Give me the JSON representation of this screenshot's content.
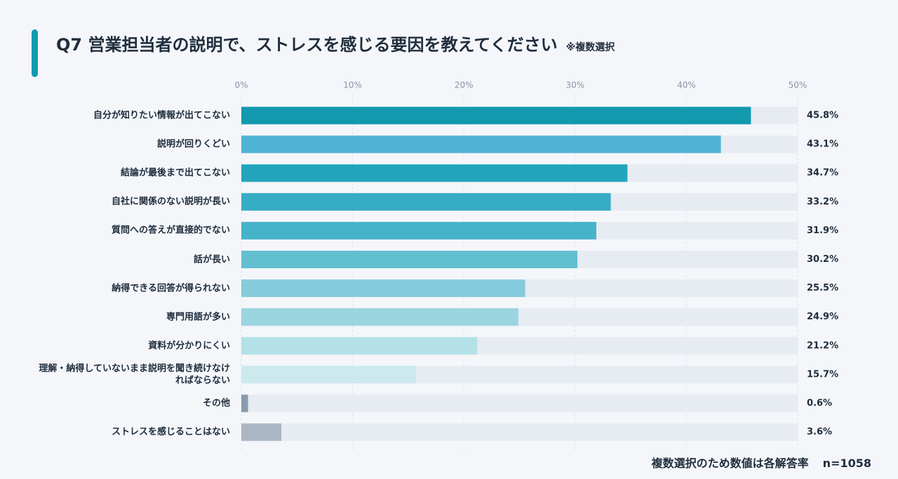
{
  "chart_data": {
    "type": "hbar",
    "title": "Q7 営業担当者の説明で、ストレスを感じる要因を教えてください",
    "subtitle": "※複数選択",
    "categories": [
      "自分が知りたい情報が出てこない",
      "説明が回りくどい",
      "結論が最後まで出てこない",
      "自社に関係のない説明が長い",
      "質問への答えが直接的でない",
      "話が長い",
      "納得できる回答が得られない",
      "専門用語が多い",
      "資料が分かりにくい",
      "理解・納得していないまま説明を聞き続けなければならない",
      "その他",
      "ストレスを感じることはない"
    ],
    "values": [
      45.8,
      43.1,
      34.7,
      33.2,
      31.9,
      30.2,
      25.5,
      24.9,
      21.2,
      15.7,
      0.6,
      3.6
    ],
    "value_labels": [
      "45.8%",
      "43.1%",
      "34.7%",
      "33.2%",
      "31.9%",
      "30.2%",
      "25.5%",
      "24.9%",
      "21.2%",
      "15.7%",
      "0.6%",
      "3.6%"
    ],
    "colors": [
      "#1399ae",
      "#4fb3d4",
      "#22a5bc",
      "#37acc5",
      "#45b3c9",
      "#62bfd0",
      "#84cbdb",
      "#9bd5e0",
      "#b3e1e7",
      "#cceaee",
      "#8a9aac",
      "#aab6c4"
    ],
    "track_color": "#e7ebf2",
    "xlim": [
      0,
      50
    ],
    "xticks": [
      {
        "value": 0,
        "label": "0%"
      },
      {
        "value": 10,
        "label": "10%"
      },
      {
        "value": 20,
        "label": "20%"
      },
      {
        "value": 30,
        "label": "30%"
      },
      {
        "value": 40,
        "label": "40%"
      },
      {
        "value": 50,
        "label": "50%"
      }
    ],
    "grid": true,
    "note": "複数選択のため数値は各解答率",
    "sample_size": "n=1058"
  }
}
